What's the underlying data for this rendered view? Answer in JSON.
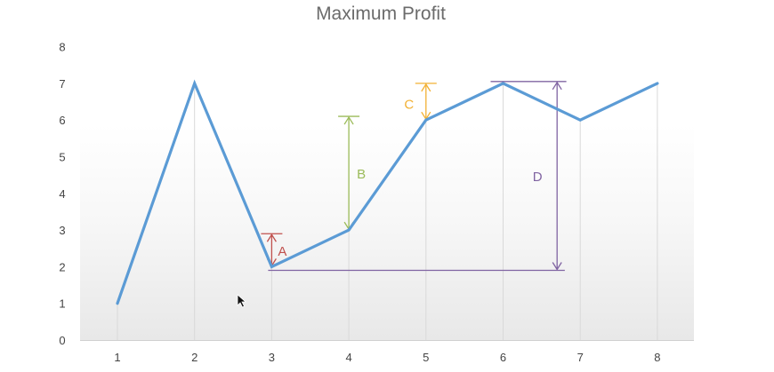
{
  "title": "Maximum Profit",
  "chart_data": {
    "type": "line",
    "title": "Maximum Profit",
    "xlabel": "",
    "ylabel": "",
    "x": [
      1,
      2,
      3,
      4,
      5,
      6,
      7,
      8
    ],
    "series": [
      {
        "values": [
          1,
          7,
          2,
          3,
          6,
          7,
          6,
          7
        ],
        "color": "#5b9bd5"
      }
    ],
    "x_ticks": [
      "1",
      "2",
      "3",
      "4",
      "5",
      "6",
      "7",
      "8"
    ],
    "y_ticks": [
      "0",
      "1",
      "2",
      "3",
      "4",
      "5",
      "6",
      "7",
      "8"
    ],
    "ylim": [
      0,
      8
    ],
    "xlim": [
      0.5,
      8.5
    ],
    "grid": "vertical lines at each x value",
    "annotations": [
      {
        "label": "A",
        "color": "#c0504d",
        "x": 3,
        "from": 2,
        "to": 2.9
      },
      {
        "label": "B",
        "color": "#9bbb59",
        "x": 4,
        "from": 3,
        "to": 6.1
      },
      {
        "label": "C",
        "color": "#f2b134",
        "x": 5,
        "from": 6,
        "to": 7
      },
      {
        "label": "D",
        "color": "#8064a2",
        "x": 6.7,
        "from": 1.9,
        "to": 7.05
      }
    ],
    "baseline": {
      "color": "#8064a2",
      "y": 1.9,
      "x_from": 3,
      "x_to": 6.8
    }
  },
  "icons": {
    "cursor": "mouse-pointer-icon"
  }
}
